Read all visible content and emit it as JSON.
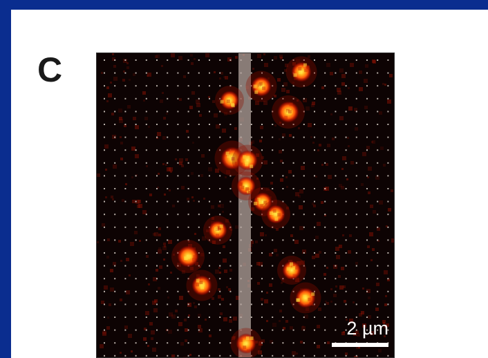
{
  "figure": {
    "panel_label": "C",
    "scale_bar_label": "2 µm",
    "colors": {
      "slide_border": "#0a2d8f",
      "slide_background": "#ffffff",
      "image_background": "#0d0303",
      "grid_dot": "#d9d0c8",
      "channel_band": "#b9aaa4",
      "spot_core": "#fff35a",
      "spot_mid": "#ff7a10",
      "spot_edge": "#b01000"
    }
  }
}
